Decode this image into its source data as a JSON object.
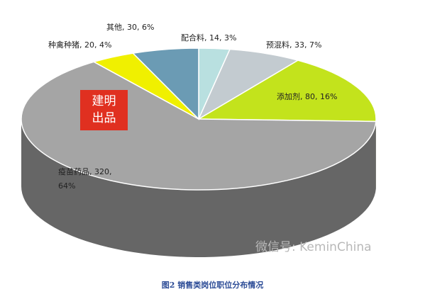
{
  "chart_data": {
    "type": "pie",
    "title": "图2 销售类岗位职位分布情况",
    "categories": [
      "配合料",
      "预混料",
      "添加剂",
      "疫苗药品",
      "种禽种猪",
      "其他"
    ],
    "values": [
      14,
      33,
      80,
      320,
      20,
      30
    ],
    "value_labels": [
      "配合料, 14, 3%",
      "预混料, 33, 7%",
      "添加剂, 80, 16%",
      "疫苗药品, 320, 64%",
      "种禽种猪, 20, 4%",
      "其他, 30, 6%"
    ],
    "colors": [
      "#b9e0e0",
      "#c3cbd0",
      "#c3e31c",
      "#a5a5a5",
      "#f0f000",
      "#6b9bb4"
    ]
  },
  "stamp": "建明出品",
  "watermark": "微信号: KeminChina"
}
